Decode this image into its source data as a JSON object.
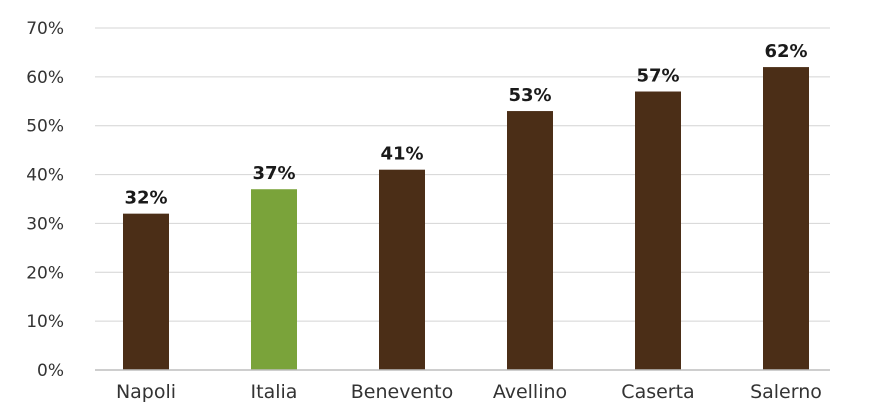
{
  "chart_data": {
    "type": "bar",
    "categories": [
      "Napoli",
      "Italia",
      "Benevento",
      "Avellino",
      "Caserta",
      "Salerno"
    ],
    "values": [
      32,
      37,
      41,
      53,
      57,
      62
    ],
    "data_labels": [
      "32%",
      "37%",
      "41%",
      "53%",
      "57%",
      "62%"
    ],
    "ylim": [
      0,
      70
    ],
    "yticks": [
      0,
      10,
      20,
      30,
      40,
      50,
      60,
      70
    ],
    "ytick_labels": [
      "0%",
      "10%",
      "20%",
      "30%",
      "40%",
      "50%",
      "60%",
      "70%"
    ],
    "grid": true,
    "legend": "none",
    "colors": {
      "default_bar": "#4b2e17",
      "highlight_bar": "#7aa33a",
      "highlight_category": "Italia"
    }
  }
}
